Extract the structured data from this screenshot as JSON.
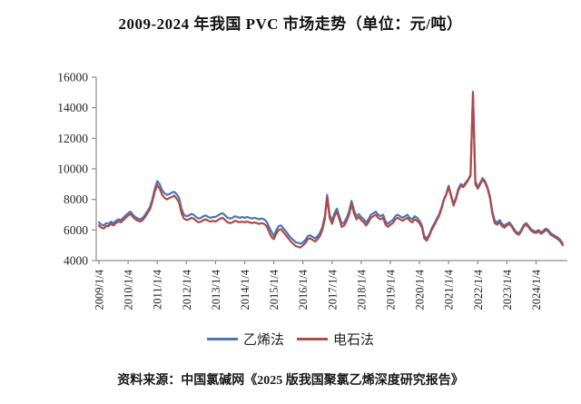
{
  "title": "2009-2024 年我国 PVC 市场走势（单位：元/吨）",
  "source": "资料来源：中国氯碱网《2025 版我国聚氯乙烯深度研究报告》",
  "colors": {
    "ethylene_blue": "#4878b4",
    "carbide_red": "#b04a47",
    "axis_line": "#8c8c8c",
    "label_text": "#262626"
  },
  "chart_data": {
    "type": "line",
    "title": "2009-2024 年我国 PVC 市场走势（单位：元/吨）",
    "unit": "元/吨",
    "grid": false,
    "legend_position": "bottom",
    "ylim": [
      4000,
      16000
    ],
    "y_ticks": [
      4000,
      6000,
      8000,
      10000,
      12000,
      14000,
      16000
    ],
    "x_tick_labels": [
      "2009/1/4",
      "2010/1/4",
      "2011/1/4",
      "2012/1/4",
      "2013/1/4",
      "2014/1/4",
      "2015/1/4",
      "2016/1/4",
      "2017/1/4",
      "2018/1/4",
      "2019/1/4",
      "2020/1/4",
      "2021/1/4",
      "2022/1/4",
      "2023/1/4",
      "2024/1/4"
    ],
    "x_frequency": "monthly",
    "x_range": [
      "2009-01",
      "2024-12"
    ],
    "series": [
      {
        "key": "ethylene",
        "name": "乙烯法",
        "color": "#4878b4",
        "values": [
          6500,
          6350,
          6300,
          6450,
          6400,
          6550,
          6450,
          6600,
          6700,
          6650,
          6800,
          6950,
          7100,
          7200,
          7000,
          6850,
          6750,
          6700,
          6800,
          7000,
          7250,
          7500,
          8000,
          8700,
          9200,
          9000,
          8600,
          8400,
          8300,
          8350,
          8450,
          8500,
          8350,
          8100,
          7400,
          7000,
          6900,
          6950,
          7050,
          7000,
          6850,
          6750,
          6800,
          6900,
          6950,
          6850,
          6800,
          6850,
          6850,
          6950,
          7050,
          7100,
          6950,
          6800,
          6750,
          6800,
          6900,
          6850,
          6800,
          6850,
          6800,
          6850,
          6800,
          6750,
          6800,
          6750,
          6700,
          6750,
          6700,
          6550,
          6200,
          5900,
          5600,
          6000,
          6250,
          6300,
          6100,
          5900,
          5700,
          5500,
          5350,
          5200,
          5150,
          5100,
          5200,
          5350,
          5600,
          5650,
          5550,
          5450,
          5600,
          5800,
          6200,
          6900,
          8300,
          7000,
          6600,
          7100,
          7400,
          6900,
          6400,
          6500,
          6800,
          7200,
          7900,
          7300,
          6900,
          7050,
          6850,
          6700,
          6500,
          6700,
          7000,
          7100,
          7200,
          7000,
          6900,
          7000,
          6550,
          6400,
          6550,
          6650,
          6900,
          7000,
          6900,
          6800,
          6900,
          7000,
          6800,
          6700,
          6900,
          6800,
          6600,
          6300,
          5600,
          5450,
          5700,
          6100,
          6400,
          6700,
          7000,
          7450,
          8000,
          8350,
          8900,
          8300,
          7700,
          8100,
          8700,
          9000,
          8900,
          9100,
          9300,
          9600,
          15050,
          9200,
          8800,
          9100,
          9400,
          9200,
          8800,
          8200,
          7200,
          6600,
          6500,
          6650,
          6400,
          6300,
          6400,
          6500,
          6300,
          6050,
          5850,
          5800,
          6050,
          6350,
          6450,
          6250,
          6050,
          5950,
          5900,
          6000,
          5850,
          5950,
          6100,
          6000,
          5800,
          5700,
          5600,
          5500,
          5350,
          5100
        ]
      },
      {
        "key": "carbide",
        "name": "电石法",
        "color": "#b04a47",
        "values": [
          6300,
          6150,
          6100,
          6250,
          6250,
          6400,
          6300,
          6450,
          6550,
          6500,
          6650,
          6800,
          6950,
          7050,
          6850,
          6700,
          6600,
          6550,
          6650,
          6850,
          7100,
          7350,
          7850,
          8500,
          8950,
          8700,
          8300,
          8100,
          8000,
          8100,
          8150,
          8250,
          8050,
          7800,
          7100,
          6750,
          6650,
          6700,
          6800,
          6750,
          6600,
          6500,
          6550,
          6650,
          6700,
          6600,
          6550,
          6600,
          6550,
          6650,
          6750,
          6800,
          6650,
          6500,
          6450,
          6500,
          6600,
          6550,
          6500,
          6550,
          6500,
          6550,
          6500,
          6450,
          6500,
          6450,
          6400,
          6450,
          6400,
          6250,
          5900,
          5550,
          5400,
          5750,
          6000,
          6050,
          5850,
          5650,
          5450,
          5250,
          5100,
          4950,
          4900,
          4850,
          5000,
          5150,
          5400,
          5450,
          5350,
          5250,
          5400,
          5600,
          6000,
          6700,
          8150,
          6800,
          6400,
          6900,
          7200,
          6700,
          6200,
          6300,
          6600,
          7000,
          7700,
          7100,
          6700,
          6850,
          6650,
          6500,
          6300,
          6500,
          6800,
          6900,
          7000,
          6800,
          6700,
          6800,
          6350,
          6200,
          6350,
          6450,
          6700,
          6800,
          6700,
          6600,
          6700,
          6800,
          6600,
          6500,
          6700,
          6600,
          6450,
          6150,
          5450,
          5300,
          5600,
          6000,
          6300,
          6600,
          6900,
          7350,
          7950,
          8300,
          8800,
          8200,
          7600,
          8000,
          8600,
          8900,
          8800,
          9000,
          9250,
          9550,
          14950,
          9000,
          8700,
          9000,
          9300,
          9100,
          8700,
          8100,
          7050,
          6450,
          6350,
          6500,
          6250,
          6150,
          6300,
          6400,
          6200,
          5950,
          5750,
          5700,
          5950,
          6250,
          6350,
          6150,
          5950,
          5850,
          5800,
          5900,
          5750,
          5850,
          6000,
          5900,
          5700,
          5600,
          5500,
          5400,
          5250,
          5000
        ]
      }
    ]
  }
}
